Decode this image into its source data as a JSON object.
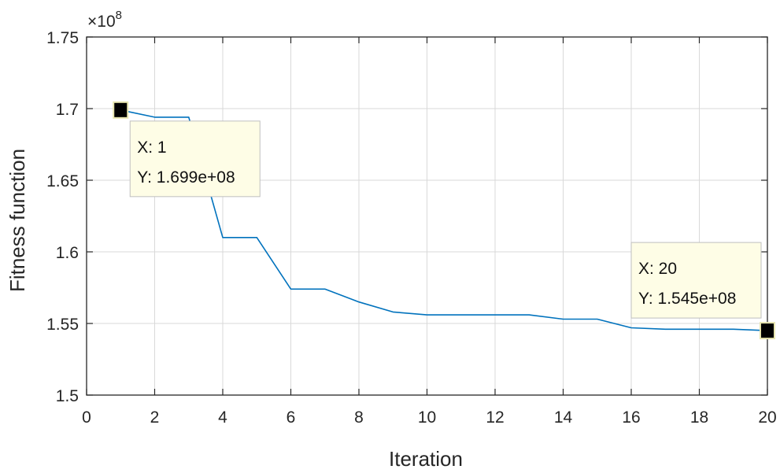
{
  "chart_data": {
    "type": "line",
    "xlabel": "Iteration",
    "ylabel": "Fitness function",
    "y_scale_label": "×10",
    "y_scale_exponent": "8",
    "xlim": [
      0,
      20
    ],
    "ylim": [
      1.5,
      1.75
    ],
    "xticks": [
      0,
      2,
      4,
      6,
      8,
      10,
      12,
      14,
      16,
      18,
      20
    ],
    "xtick_labels": [
      "0",
      "2",
      "4",
      "6",
      "8",
      "10",
      "12",
      "14",
      "16",
      "18",
      "20"
    ],
    "yticks": [
      1.5,
      1.55,
      1.6,
      1.65,
      1.7,
      1.75
    ],
    "ytick_labels": [
      "1.5",
      "1.55",
      "1.6",
      "1.65",
      "1.7",
      "1.75"
    ],
    "grid": true,
    "series": [
      {
        "color": "#0072bd",
        "x": [
          1,
          2,
          3,
          4,
          5,
          6,
          7,
          8,
          9,
          10,
          11,
          12,
          13,
          14,
          15,
          16,
          17,
          18,
          19,
          20
        ],
        "y": [
          1.699,
          1.694,
          1.694,
          1.61,
          1.61,
          1.574,
          1.574,
          1.565,
          1.558,
          1.556,
          1.556,
          1.556,
          1.556,
          1.553,
          1.553,
          1.547,
          1.546,
          1.546,
          1.546,
          1.545
        ]
      }
    ],
    "datatips": [
      {
        "x": 1,
        "y": 1.699,
        "x_text": "X: 1",
        "y_text": "Y: 1.699e+08"
      },
      {
        "x": 20,
        "y": 1.545,
        "x_text": "X: 20",
        "y_text": "Y: 1.545e+08"
      }
    ]
  }
}
